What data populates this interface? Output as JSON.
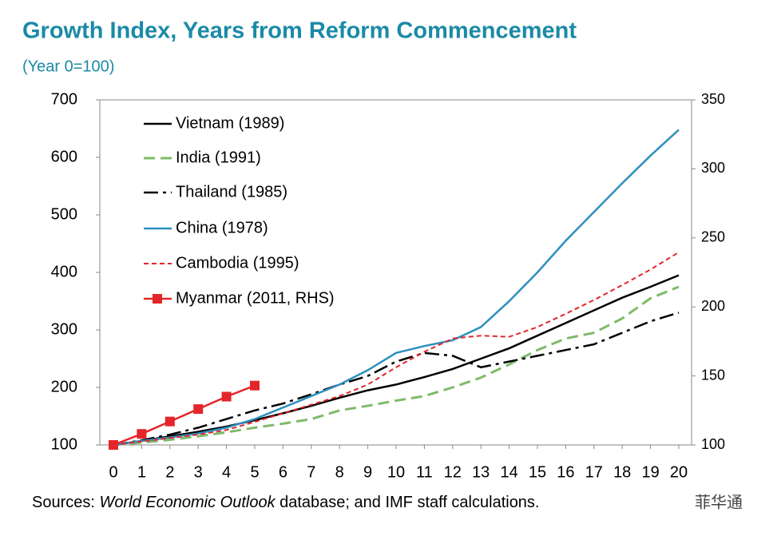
{
  "chart_data": {
    "type": "line",
    "title": "Growth Index, Years from Reform Commencement",
    "subtitle": "(Year 0=100)",
    "source": {
      "prefix": "Sources: ",
      "italic": "World Economic Outlook",
      "suffix": " database; and IMF staff calculations."
    },
    "watermark": "菲华通",
    "x": [
      0,
      1,
      2,
      3,
      4,
      5,
      6,
      7,
      8,
      9,
      10,
      11,
      12,
      13,
      14,
      15,
      16,
      17,
      18,
      19,
      20
    ],
    "xlim": [
      0,
      20
    ],
    "xticks": [
      0,
      1,
      2,
      3,
      4,
      5,
      6,
      7,
      8,
      9,
      10,
      11,
      12,
      13,
      14,
      15,
      16,
      17,
      18,
      19,
      20
    ],
    "ylim": [
      100,
      700
    ],
    "yticks": [
      100,
      200,
      300,
      400,
      500,
      600,
      700
    ],
    "y2lim": [
      100,
      350
    ],
    "y2ticks": [
      100,
      150,
      200,
      250,
      300,
      350
    ],
    "legend": "upper left",
    "series": [
      {
        "name": "Vietnam (1989)",
        "color": "#000000",
        "dash": "solid",
        "values": [
          100,
          107,
          115,
          123,
          132,
          143,
          155,
          168,
          182,
          195,
          205,
          218,
          232,
          250,
          268,
          290,
          312,
          334,
          356,
          375,
          395
        ]
      },
      {
        "name": "India (1991)",
        "color": "#7fba6a",
        "dash": "dashed",
        "values": [
          100,
          104,
          109,
          115,
          122,
          130,
          137,
          145,
          160,
          168,
          177,
          185,
          200,
          217,
          240,
          265,
          285,
          295,
          320,
          355,
          375
        ]
      },
      {
        "name": "Thailand (1985)",
        "color": "#000000",
        "dash": "dashdot",
        "values": [
          100,
          108,
          118,
          130,
          145,
          160,
          172,
          188,
          205,
          220,
          245,
          260,
          255,
          235,
          245,
          255,
          265,
          275,
          295,
          315,
          330
        ]
      },
      {
        "name": "China (1978)",
        "color": "#2e8fbf",
        "dash": "solid",
        "values": [
          100,
          107,
          113,
          120,
          130,
          145,
          165,
          185,
          205,
          230,
          260,
          272,
          282,
          305,
          350,
          400,
          455,
          505,
          555,
          603,
          648
        ]
      },
      {
        "name": "Cambodia (1995)",
        "color": "#e3262b",
        "dash": "dotted",
        "values": [
          100,
          106,
          112,
          118,
          126,
          140,
          155,
          170,
          185,
          205,
          235,
          262,
          285,
          290,
          288,
          305,
          328,
          352,
          378,
          405,
          435
        ]
      },
      {
        "name": "Myanmar (2011, RHS)",
        "color": "#e3262b",
        "dash": "solid",
        "marker": "square",
        "axis": "y2",
        "values": [
          100,
          108,
          117,
          126,
          135,
          143,
          null,
          null,
          null,
          null,
          null,
          null,
          null,
          null,
          null,
          null,
          null,
          null,
          null,
          null,
          null
        ]
      }
    ]
  }
}
